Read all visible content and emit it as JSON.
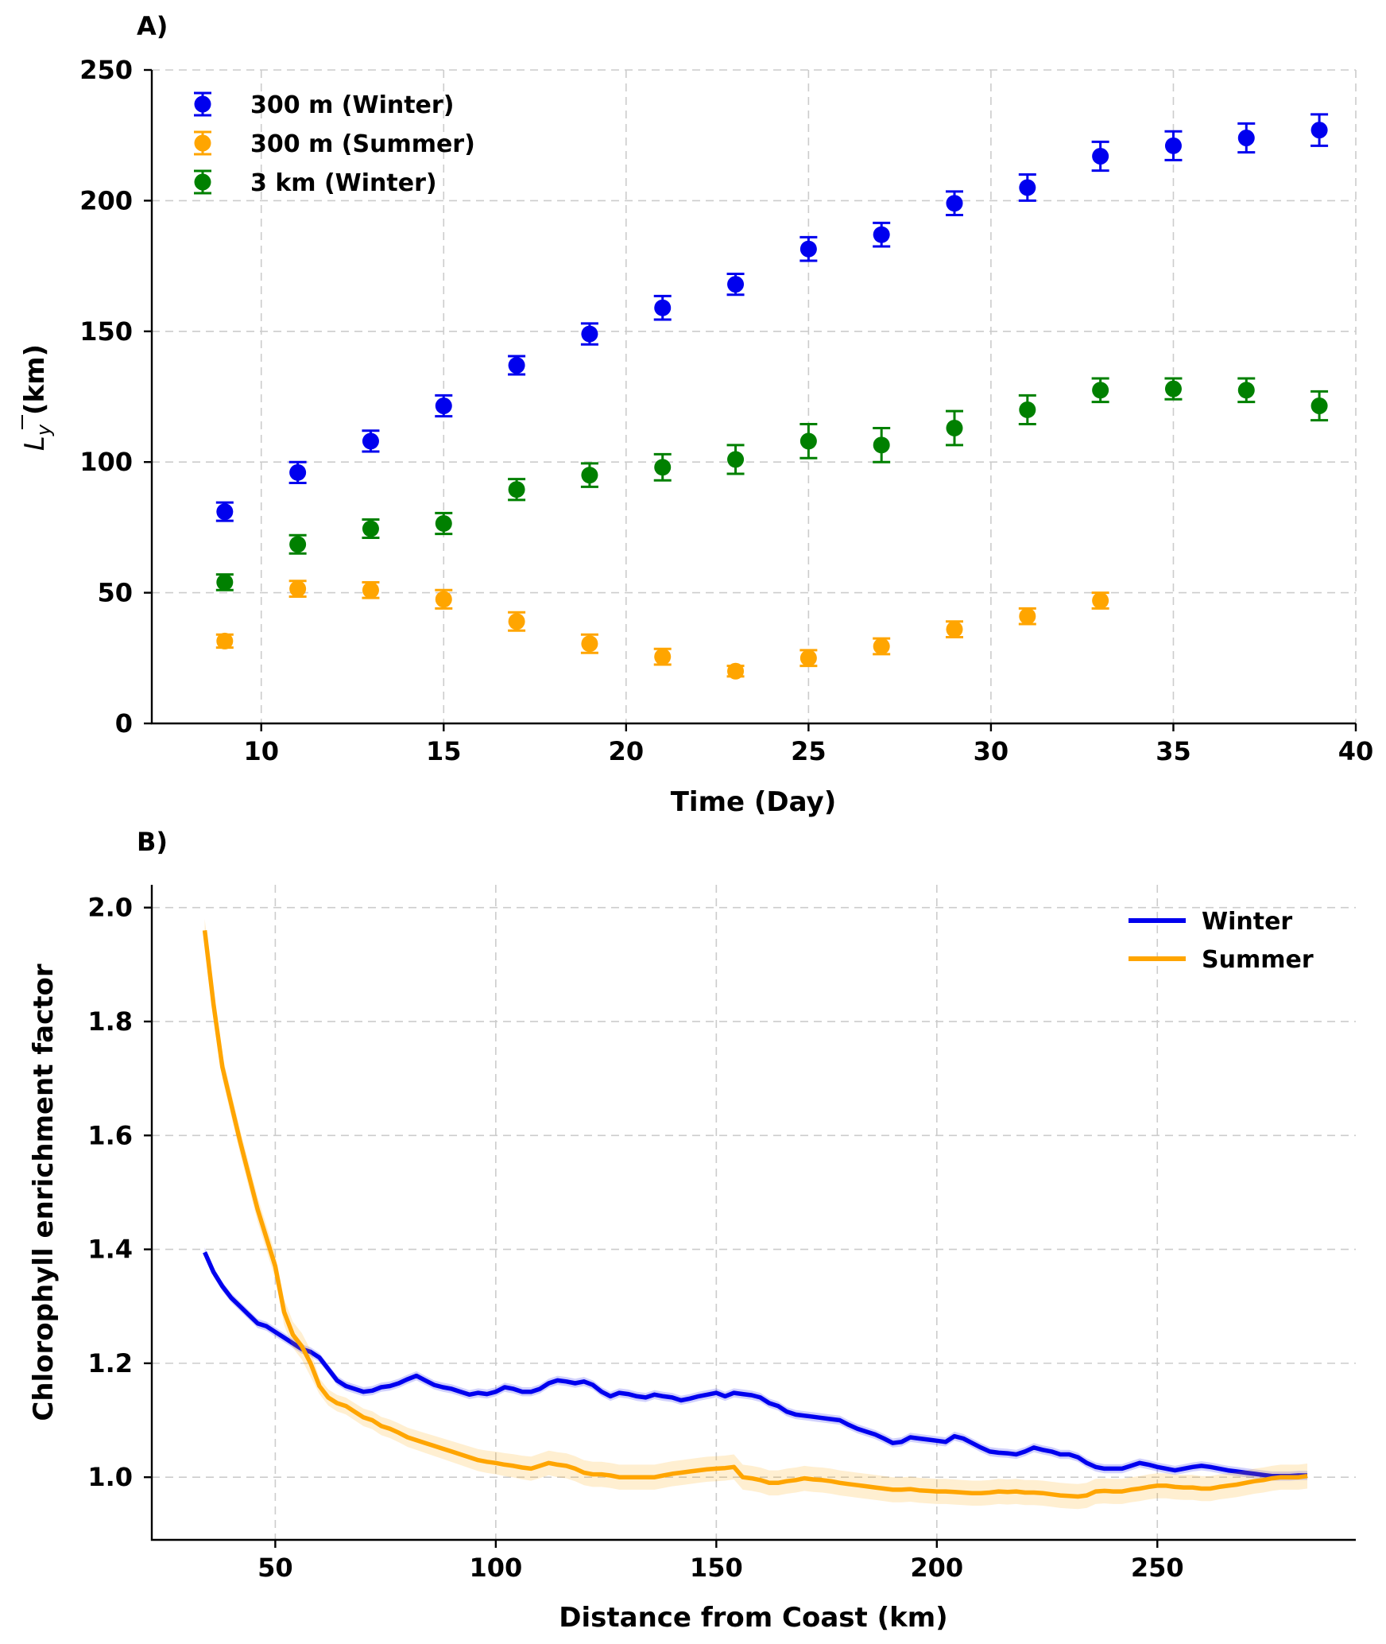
{
  "chart_data": [
    {
      "type": "scatter",
      "panel_label": "A)",
      "xlabel": "Time (Day)",
      "ylabel_main": "L",
      "ylabel_sub": "y",
      "ylabel_unit": "(km)",
      "xlim": [
        7,
        40
      ],
      "ylim": [
        0,
        250
      ],
      "xticks": [
        10,
        15,
        20,
        25,
        30,
        35,
        40
      ],
      "yticks": [
        0,
        50,
        100,
        150,
        200,
        250
      ],
      "grid": true,
      "legend_position": "upper-left",
      "series": [
        {
          "name": "300 m (Winter)",
          "color": "#0000ee",
          "x": [
            9,
            11,
            13,
            15,
            17,
            19,
            21,
            23,
            25,
            27,
            29,
            31,
            33,
            35,
            37,
            39
          ],
          "y": [
            81,
            96,
            108,
            121.5,
            137,
            149,
            159,
            168,
            181.5,
            187,
            199,
            205,
            217,
            221,
            224,
            227
          ],
          "err": [
            3.5,
            4,
            4,
            4,
            3.5,
            4,
            4.5,
            4,
            4.5,
            4.5,
            4.5,
            5,
            5.5,
            5.5,
            5.5,
            6
          ]
        },
        {
          "name": "300 m (Summer)",
          "color": "#ffa500",
          "x": [
            9,
            11,
            13,
            15,
            17,
            19,
            21,
            23,
            25,
            27,
            29,
            31,
            33
          ],
          "y": [
            31.5,
            51.5,
            51,
            47.5,
            39,
            30.5,
            25.5,
            20,
            25,
            29.5,
            36,
            41,
            47
          ],
          "err": [
            2.5,
            3,
            3,
            3.5,
            3.5,
            3.5,
            3,
            2,
            3,
            3,
            3,
            3,
            3
          ]
        },
        {
          "name": "3 km (Winter)",
          "color": "#008000",
          "x": [
            9,
            11,
            13,
            15,
            17,
            19,
            21,
            23,
            25,
            27,
            29,
            31,
            33,
            35,
            37,
            39
          ],
          "y": [
            54,
            68.5,
            74.5,
            76.5,
            89.5,
            95,
            98,
            101,
            108,
            106.5,
            113,
            120,
            127.5,
            128,
            127.5,
            121.5
          ],
          "err": [
            3,
            3.5,
            3.5,
            4,
            4,
            4.5,
            5,
            5.5,
            6.5,
            6.5,
            6.5,
            5.5,
            4.5,
            4,
            4.5,
            5.5
          ]
        }
      ]
    },
    {
      "type": "line",
      "panel_label": "B)",
      "xlabel": "Distance from Coast (km)",
      "ylabel": "Chlorophyll enrichment factor",
      "xlim": [
        22,
        295
      ],
      "ylim": [
        0.89,
        2.04
      ],
      "xticks": [
        50,
        100,
        150,
        200,
        250
      ],
      "yticks": [
        1.0,
        1.2,
        1.4,
        1.6,
        1.8,
        2.0
      ],
      "ytick_labels": [
        "1.0",
        "1.2",
        "1.4",
        "1.6",
        "1.8",
        "2.0"
      ],
      "grid": true,
      "legend_position": "upper-right",
      "series": [
        {
          "name": "Winter",
          "color": "#0000ee",
          "x": [
            34,
            36,
            38,
            40,
            42,
            44,
            46,
            48,
            50,
            52,
            54,
            56,
            58,
            60,
            62,
            64,
            66,
            68,
            70,
            72,
            74,
            76,
            78,
            80,
            82,
            84,
            86,
            88,
            90,
            92,
            94,
            96,
            98,
            100,
            102,
            104,
            106,
            108,
            110,
            112,
            114,
            116,
            118,
            120,
            122,
            124,
            126,
            128,
            130,
            132,
            134,
            136,
            138,
            140,
            142,
            144,
            146,
            148,
            150,
            152,
            154,
            156,
            158,
            160,
            162,
            164,
            166,
            168,
            170,
            172,
            174,
            176,
            178,
            180,
            182,
            184,
            186,
            188,
            190,
            192,
            194,
            196,
            198,
            200,
            202,
            204,
            206,
            208,
            210,
            212,
            214,
            216,
            218,
            220,
            222,
            224,
            226,
            228,
            230,
            232,
            234,
            236,
            238,
            240,
            242,
            244,
            246,
            248,
            250,
            252,
            254,
            256,
            258,
            260,
            262,
            264,
            266,
            268,
            270,
            272,
            274,
            276,
            278,
            280,
            282,
            284
          ],
          "y": [
            1.395,
            1.36,
            1.335,
            1.315,
            1.3,
            1.285,
            1.27,
            1.265,
            1.255,
            1.245,
            1.235,
            1.225,
            1.22,
            1.21,
            1.19,
            1.17,
            1.16,
            1.155,
            1.15,
            1.152,
            1.158,
            1.16,
            1.165,
            1.172,
            1.178,
            1.17,
            1.162,
            1.158,
            1.155,
            1.15,
            1.145,
            1.148,
            1.146,
            1.15,
            1.158,
            1.155,
            1.15,
            1.15,
            1.155,
            1.165,
            1.17,
            1.168,
            1.165,
            1.168,
            1.162,
            1.15,
            1.142,
            1.148,
            1.146,
            1.142,
            1.14,
            1.145,
            1.142,
            1.14,
            1.135,
            1.138,
            1.142,
            1.145,
            1.148,
            1.142,
            1.148,
            1.146,
            1.144,
            1.14,
            1.13,
            1.125,
            1.115,
            1.11,
            1.108,
            1.106,
            1.104,
            1.102,
            1.1,
            1.092,
            1.085,
            1.08,
            1.075,
            1.068,
            1.06,
            1.062,
            1.07,
            1.068,
            1.066,
            1.064,
            1.062,
            1.072,
            1.068,
            1.06,
            1.052,
            1.045,
            1.043,
            1.042,
            1.04,
            1.045,
            1.052,
            1.048,
            1.045,
            1.04,
            1.04,
            1.035,
            1.025,
            1.018,
            1.015,
            1.015,
            1.015,
            1.02,
            1.025,
            1.022,
            1.018,
            1.015,
            1.012,
            1.015,
            1.018,
            1.02,
            1.018,
            1.015,
            1.012,
            1.01,
            1.008,
            1.006,
            1.004,
            1.002,
            1.002,
            1.002,
            1.003,
            1.003
          ]
        },
        {
          "name": "Summer",
          "color": "#ffa500",
          "x": [
            34,
            36,
            38,
            40,
            42,
            44,
            46,
            48,
            50,
            52,
            54,
            56,
            58,
            60,
            62,
            64,
            66,
            68,
            70,
            72,
            74,
            76,
            78,
            80,
            82,
            84,
            86,
            88,
            90,
            92,
            94,
            96,
            98,
            100,
            102,
            104,
            106,
            108,
            110,
            112,
            114,
            116,
            118,
            120,
            122,
            124,
            126,
            128,
            130,
            132,
            134,
            136,
            138,
            140,
            142,
            144,
            146,
            148,
            150,
            152,
            154,
            156,
            158,
            160,
            162,
            164,
            166,
            168,
            170,
            172,
            174,
            176,
            178,
            180,
            182,
            184,
            186,
            188,
            190,
            192,
            194,
            196,
            198,
            200,
            202,
            204,
            206,
            208,
            210,
            212,
            214,
            216,
            218,
            220,
            222,
            224,
            226,
            228,
            230,
            232,
            234,
            236,
            238,
            240,
            242,
            244,
            246,
            248,
            250,
            252,
            254,
            256,
            258,
            260,
            262,
            264,
            266,
            268,
            270,
            272,
            274,
            276,
            278,
            280,
            282,
            284
          ],
          "y": [
            1.96,
            1.83,
            1.72,
            1.655,
            1.59,
            1.53,
            1.47,
            1.42,
            1.37,
            1.29,
            1.25,
            1.23,
            1.2,
            1.16,
            1.14,
            1.13,
            1.125,
            1.115,
            1.105,
            1.1,
            1.09,
            1.085,
            1.078,
            1.07,
            1.065,
            1.06,
            1.055,
            1.05,
            1.045,
            1.04,
            1.035,
            1.03,
            1.027,
            1.025,
            1.022,
            1.02,
            1.017,
            1.015,
            1.02,
            1.025,
            1.022,
            1.02,
            1.015,
            1.008,
            1.005,
            1.005,
            1.003,
            1.0,
            1.0,
            1.0,
            1.0,
            1.0,
            1.003,
            1.006,
            1.008,
            1.01,
            1.012,
            1.014,
            1.015,
            1.016,
            1.018,
            1.0,
            0.998,
            0.995,
            0.99,
            0.99,
            0.993,
            0.995,
            0.998,
            0.996,
            0.995,
            0.993,
            0.99,
            0.988,
            0.986,
            0.984,
            0.982,
            0.98,
            0.978,
            0.978,
            0.979,
            0.977,
            0.976,
            0.975,
            0.975,
            0.974,
            0.973,
            0.972,
            0.972,
            0.973,
            0.975,
            0.974,
            0.975,
            0.973,
            0.973,
            0.972,
            0.97,
            0.968,
            0.967,
            0.966,
            0.968,
            0.975,
            0.976,
            0.975,
            0.975,
            0.978,
            0.98,
            0.983,
            0.985,
            0.985,
            0.983,
            0.982,
            0.982,
            0.98,
            0.98,
            0.983,
            0.985,
            0.987,
            0.99,
            0.993,
            0.995,
            0.998,
            1.0,
            1.0,
            1.0,
            1.002
          ]
        }
      ]
    }
  ]
}
